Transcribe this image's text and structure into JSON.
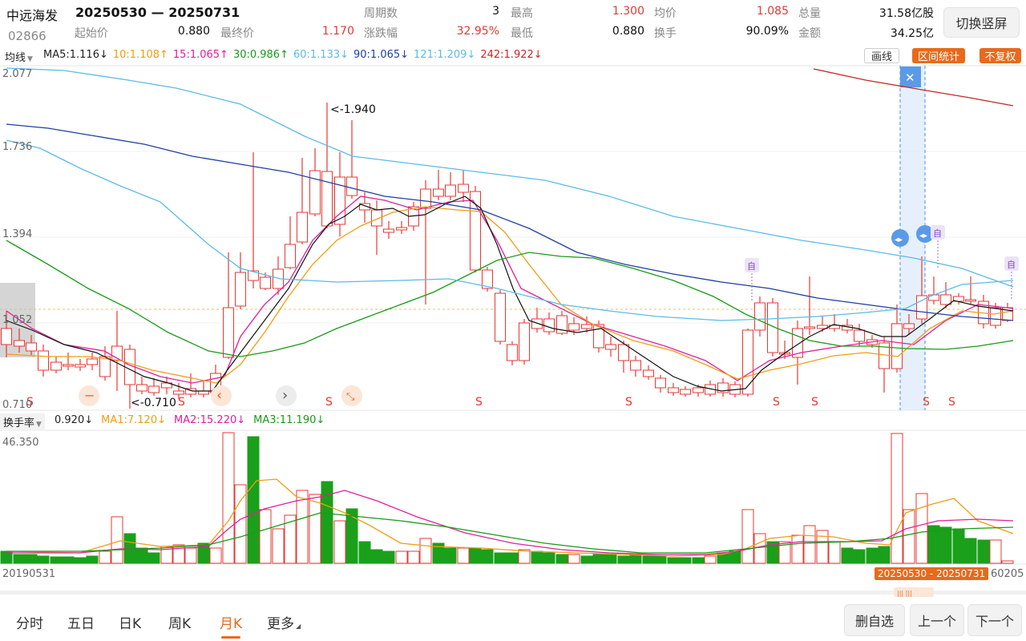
{
  "header": {
    "stock_name": "中远海发",
    "stock_code": "02866",
    "date_range": "20250530 — 20250731",
    "stats": [
      {
        "label": "周期数",
        "value": "3",
        "red": false
      },
      {
        "label": "最高",
        "value": "1.300",
        "red": true
      },
      {
        "label": "均价",
        "value": "1.085",
        "red": true
      },
      {
        "label": "总量",
        "value": "31.58亿股",
        "red": false
      },
      {
        "label": "起始价",
        "value": "0.880",
        "red": false
      },
      {
        "label": "最终价",
        "value": "1.170",
        "red": true
      },
      {
        "label": "涨跌幅",
        "value": "32.95%",
        "red": true
      },
      {
        "label": "最低",
        "value": "0.880",
        "red": false
      },
      {
        "label": "换手",
        "value": "90.09%",
        "red": false
      },
      {
        "label": "金额",
        "value": "34.25亿",
        "red": false
      }
    ],
    "switch_button": "切换竖屏"
  },
  "ma_bar": {
    "selector": "均线",
    "items": [
      {
        "text": "MA5:1.116↓",
        "color": "#222222"
      },
      {
        "text": "10:1.108↑",
        "color": "#f39c12"
      },
      {
        "text": "15:1.065↑",
        "color": "#e01f9c"
      },
      {
        "text": "30:0.986↑",
        "color": "#1a9a1a"
      },
      {
        "text": "60:1.133↓",
        "color": "#5bbbe8"
      },
      {
        "text": "90:1.065↓",
        "color": "#1f3fa0"
      },
      {
        "text": "121:1.209↓",
        "color": "#5bbbe8"
      },
      {
        "text": "242:1.922↓",
        "color": "#c62828"
      }
    ],
    "draw_label": "画线",
    "range_stat_label": "区间统计",
    "adjust_label": "不复权"
  },
  "price_axis": [
    "2.077",
    "1.736",
    "1.394",
    "1.052",
    "0.710"
  ],
  "annotations": {
    "high": "<-1.940",
    "low": "<-0.710",
    "self_tag": "自",
    "s_mark": "S"
  },
  "volume_bar": {
    "selector": "换手率",
    "items": [
      {
        "text": "0.920↓",
        "color": "#222222"
      },
      {
        "text": "MA1:7.120↓",
        "color": "#f39c12"
      },
      {
        "text": "MA2:15.220↓",
        "color": "#e01f9c"
      },
      {
        "text": "MA3:11.190↓",
        "color": "#1a9a1a"
      }
    ],
    "max_label": "46.350"
  },
  "date_axis": {
    "start": "20190531",
    "end": "60205",
    "selected_range": "20250530 - 20250731"
  },
  "tabs": [
    "分时",
    "五日",
    "日K",
    "周K",
    "月K",
    "更多"
  ],
  "active_tab": "月K",
  "buttons": {
    "delete_watch": "删自选",
    "prev": "上一个",
    "next": "下一个"
  },
  "colors": {
    "up": "#e53935",
    "down": "#1aa01a",
    "accent": "#e86a1a"
  }
}
